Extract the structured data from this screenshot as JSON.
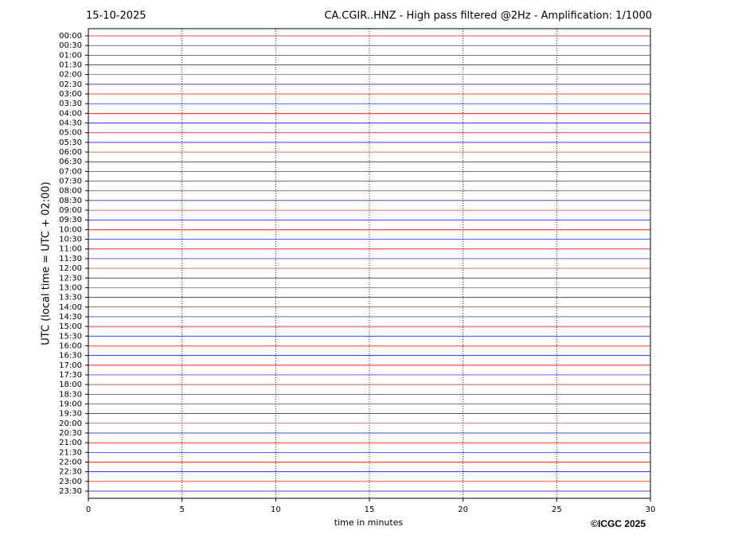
{
  "chart_data": {
    "type": "helicorder",
    "date": "15-10-2025",
    "title": "CA.CGIR..HNZ - High pass filtered @2Hz - Amplification: 1/1000",
    "xlabel": "time in minutes",
    "ylabel": "UTC (local time = UTC + 02:00)",
    "credit": "©ICGC 2025",
    "categories": [
      "00:00",
      "00:30",
      "01:00",
      "01:30",
      "02:00",
      "02:30",
      "03:00",
      "03:30",
      "04:00",
      "04:30",
      "05:00",
      "05:30",
      "06:00",
      "06:30",
      "07:00",
      "07:30",
      "08:00",
      "08:30",
      "09:00",
      "09:30",
      "10:00",
      "10:30",
      "11:00",
      "11:30",
      "12:00",
      "12:30",
      "13:00",
      "13:30",
      "14:00",
      "14:30",
      "15:00",
      "15:30",
      "16:00",
      "16:30",
      "17:00",
      "17:30",
      "18:00",
      "18:30",
      "19:00",
      "19:30",
      "20:00",
      "20:30",
      "21:00",
      "21:30",
      "22:00",
      "22:30",
      "23:00",
      "23:30"
    ],
    "colors": [
      "#ff0000",
      "#0000ff"
    ],
    "xlim": [
      0,
      30
    ],
    "xticks": [
      0,
      5,
      10,
      15,
      20,
      25,
      30
    ],
    "grid": true
  }
}
